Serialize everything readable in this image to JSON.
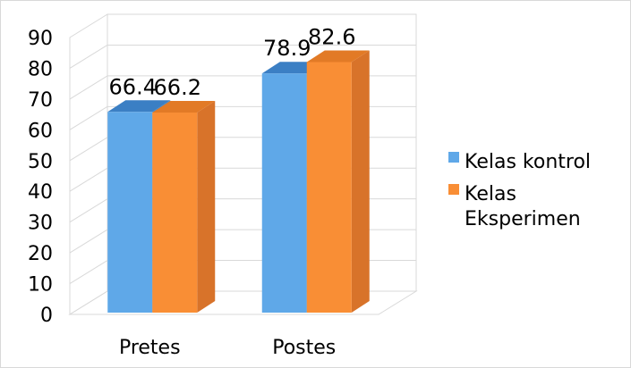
{
  "chart_data": {
    "type": "bar",
    "style": "3d-clustered-column",
    "categories": [
      "Pretes",
      "Postes"
    ],
    "series": [
      {
        "name": "Kelas kontrol",
        "values": [
          66.4,
          78.9
        ],
        "color": "#5fa8e8",
        "side_color": "#3f86c6",
        "top_color": "#3b7fc4"
      },
      {
        "name": "Kelas Eksperimen",
        "values": [
          66.2,
          82.6
        ],
        "color": "#f98e35",
        "side_color": "#d8732a",
        "top_color": "#e27a26"
      }
    ],
    "data_labels": [
      [
        "66.4",
        "78.9"
      ],
      [
        "66.2",
        "82.6"
      ]
    ],
    "y_ticks": [
      "0",
      "10",
      "20",
      "30",
      "40",
      "50",
      "60",
      "70",
      "80",
      "90"
    ],
    "ylim": [
      0,
      90
    ],
    "grid": true,
    "legend_position": "right",
    "legend": {
      "items": [
        {
          "lines": [
            "Kelas kontrol"
          ],
          "color": "#5fa8e8"
        },
        {
          "lines": [
            "Kelas",
            "Eksperimen"
          ],
          "color": "#f98e35"
        }
      ]
    }
  }
}
